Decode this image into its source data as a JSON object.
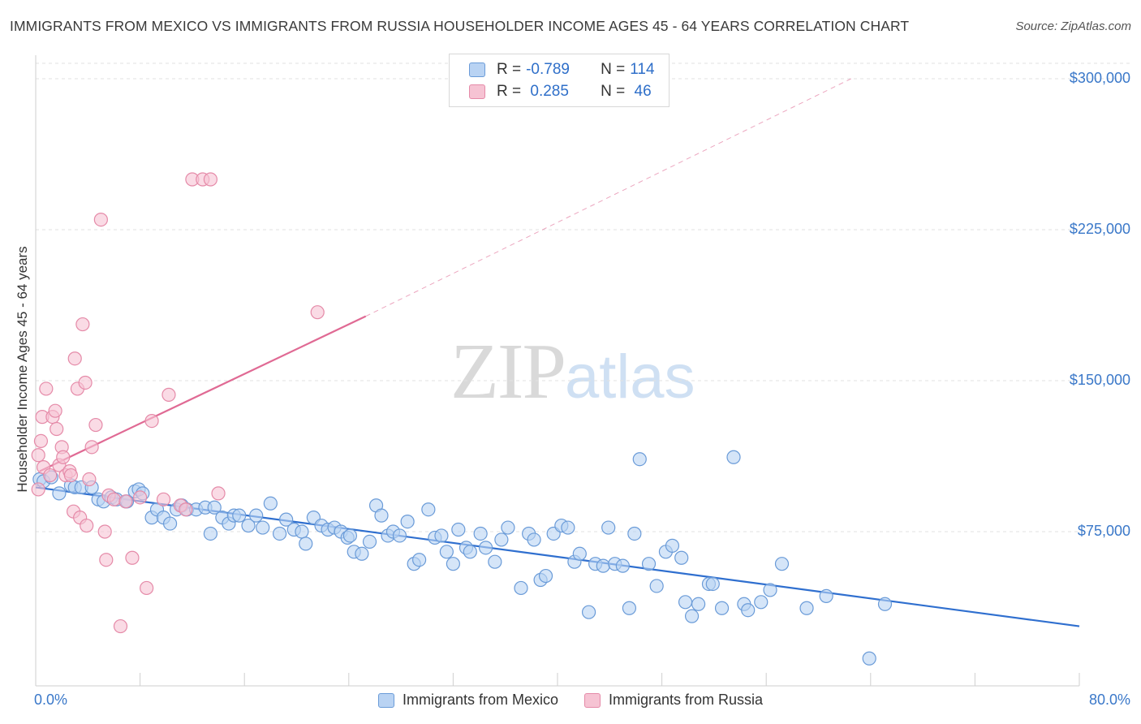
{
  "header": {
    "title": "IMMIGRANTS FROM MEXICO VS IMMIGRANTS FROM RUSSIA HOUSEHOLDER INCOME AGES 45 - 64 YEARS CORRELATION CHART",
    "source": "Source: ZipAtlas.com"
  },
  "watermark": {
    "part1": "ZIP",
    "part2": "atlas"
  },
  "legend": {
    "rows": [
      {
        "r_label": "R =",
        "r_value": "-0.789",
        "n_label": "N =",
        "n_value": "114"
      },
      {
        "r_label": "R =",
        "r_value": " 0.285",
        "n_label": "N =",
        "n_value": " 46"
      }
    ]
  },
  "colors": {
    "mexico_fill": "#b9d3f3",
    "mexico_stroke": "#6a9bd8",
    "mexico_line": "#2f6fcf",
    "russia_fill": "#f6c3d3",
    "russia_stroke": "#e58aa8",
    "russia_line": "#e06a94",
    "grid": "#e2e2e2",
    "tick_text": "#3a78c9"
  },
  "chart_data": {
    "type": "scatter",
    "title": "IMMIGRANTS FROM MEXICO VS IMMIGRANTS FROM RUSSIA HOUSEHOLDER INCOME AGES 45 - 64 YEARS CORRELATION CHART",
    "ylabel": "Householder Income Ages 45 - 64 years",
    "xlim": [
      0,
      80
    ],
    "ylim": [
      0,
      310000
    ],
    "x_tick_labels": [
      "0.0%",
      "80.0%"
    ],
    "y_ticks": [
      75000,
      150000,
      225000,
      300000
    ],
    "y_tick_labels": [
      "$75,000",
      "$150,000",
      "$225,000",
      "$300,000"
    ],
    "grid": true,
    "legend_placement": "bottom",
    "series": [
      {
        "name": "Immigrants from Mexico",
        "r": -0.789,
        "n": 114,
        "trend": {
          "x": [
            0,
            80
          ],
          "y": [
            97000,
            28000
          ]
        },
        "points": [
          [
            0.3,
            101000
          ],
          [
            0.6,
            100000
          ],
          [
            1.2,
            102000
          ],
          [
            1.8,
            94000
          ],
          [
            2.7,
            98000
          ],
          [
            3.0,
            97000
          ],
          [
            3.5,
            97000
          ],
          [
            4.3,
            97000
          ],
          [
            4.8,
            91000
          ],
          [
            5.2,
            90000
          ],
          [
            5.8,
            92000
          ],
          [
            6.2,
            91000
          ],
          [
            6.9,
            90000
          ],
          [
            7.0,
            90000
          ],
          [
            7.6,
            95000
          ],
          [
            7.9,
            96000
          ],
          [
            8.2,
            94000
          ],
          [
            8.9,
            82000
          ],
          [
            9.3,
            86000
          ],
          [
            9.8,
            82000
          ],
          [
            10.3,
            79000
          ],
          [
            10.8,
            86000
          ],
          [
            11.2,
            88000
          ],
          [
            11.6,
            86000
          ],
          [
            12.3,
            86000
          ],
          [
            13.0,
            87000
          ],
          [
            13.7,
            87000
          ],
          [
            13.4,
            74000
          ],
          [
            14.3,
            82000
          ],
          [
            14.8,
            79000
          ],
          [
            15.2,
            83000
          ],
          [
            15.6,
            83000
          ],
          [
            16.3,
            78000
          ],
          [
            16.9,
            83000
          ],
          [
            17.4,
            77000
          ],
          [
            18.0,
            89000
          ],
          [
            18.7,
            74000
          ],
          [
            19.2,
            81000
          ],
          [
            19.8,
            76000
          ],
          [
            20.4,
            75000
          ],
          [
            20.7,
            69000
          ],
          [
            21.3,
            82000
          ],
          [
            21.9,
            78000
          ],
          [
            22.4,
            76000
          ],
          [
            22.9,
            77000
          ],
          [
            23.4,
            75000
          ],
          [
            23.9,
            72000
          ],
          [
            24.4,
            65000
          ],
          [
            25.0,
            64000
          ],
          [
            25.6,
            70000
          ],
          [
            26.1,
            88000
          ],
          [
            26.5,
            83000
          ],
          [
            27.0,
            73000
          ],
          [
            27.4,
            75000
          ],
          [
            27.9,
            73000
          ],
          [
            28.5,
            80000
          ],
          [
            29.0,
            59000
          ],
          [
            29.4,
            61000
          ],
          [
            30.1,
            86000
          ],
          [
            30.6,
            72000
          ],
          [
            31.1,
            73000
          ],
          [
            31.5,
            65000
          ],
          [
            32.0,
            59000
          ],
          [
            32.4,
            76000
          ],
          [
            33.0,
            67000
          ],
          [
            33.3,
            65000
          ],
          [
            34.1,
            74000
          ],
          [
            34.5,
            67000
          ],
          [
            35.2,
            60000
          ],
          [
            35.7,
            71000
          ],
          [
            36.2,
            77000
          ],
          [
            37.2,
            47000
          ],
          [
            37.8,
            74000
          ],
          [
            38.2,
            71000
          ],
          [
            38.7,
            51000
          ],
          [
            39.1,
            53000
          ],
          [
            39.7,
            74000
          ],
          [
            40.3,
            78000
          ],
          [
            40.8,
            77000
          ],
          [
            41.3,
            60000
          ],
          [
            41.7,
            64000
          ],
          [
            42.4,
            35000
          ],
          [
            42.9,
            59000
          ],
          [
            43.5,
            58000
          ],
          [
            43.9,
            77000
          ],
          [
            44.4,
            59000
          ],
          [
            45.0,
            58000
          ],
          [
            45.5,
            37000
          ],
          [
            45.9,
            74000
          ],
          [
            46.3,
            111000
          ],
          [
            47.0,
            59000
          ],
          [
            47.6,
            48000
          ],
          [
            48.3,
            65000
          ],
          [
            48.8,
            68000
          ],
          [
            49.5,
            62000
          ],
          [
            49.8,
            40000
          ],
          [
            50.3,
            33000
          ],
          [
            50.8,
            39000
          ],
          [
            51.6,
            49000
          ],
          [
            51.9,
            49000
          ],
          [
            52.6,
            37000
          ],
          [
            53.5,
            112000
          ],
          [
            54.3,
            39000
          ],
          [
            54.6,
            36000
          ],
          [
            55.6,
            40000
          ],
          [
            56.3,
            46000
          ],
          [
            57.2,
            59000
          ],
          [
            59.1,
            37000
          ],
          [
            60.6,
            43000
          ],
          [
            63.9,
            12000
          ],
          [
            65.1,
            39000
          ],
          [
            24.1,
            73000
          ]
        ]
      },
      {
        "name": "Immigrants from Russia",
        "r": 0.285,
        "n": 46,
        "trend": {
          "x": [
            0.3,
            25.3
          ],
          "y": [
            105000,
            182000
          ]
        },
        "trend_extension": {
          "x": [
            25.3,
            62.5
          ],
          "y": [
            182000,
            300000
          ]
        },
        "points": [
          [
            0.2,
            96000
          ],
          [
            0.2,
            113000
          ],
          [
            0.4,
            120000
          ],
          [
            0.5,
            132000
          ],
          [
            0.6,
            107000
          ],
          [
            0.8,
            146000
          ],
          [
            1.1,
            103000
          ],
          [
            1.3,
            132000
          ],
          [
            1.5,
            135000
          ],
          [
            1.6,
            126000
          ],
          [
            1.8,
            108000
          ],
          [
            2.0,
            117000
          ],
          [
            2.1,
            112000
          ],
          [
            2.3,
            103000
          ],
          [
            2.6,
            105000
          ],
          [
            2.7,
            103000
          ],
          [
            2.9,
            85000
          ],
          [
            3.0,
            161000
          ],
          [
            3.2,
            146000
          ],
          [
            3.4,
            82000
          ],
          [
            3.6,
            178000
          ],
          [
            3.8,
            149000
          ],
          [
            3.9,
            78000
          ],
          [
            4.1,
            101000
          ],
          [
            4.3,
            117000
          ],
          [
            4.6,
            128000
          ],
          [
            5.0,
            230000
          ],
          [
            5.3,
            75000
          ],
          [
            5.4,
            61000
          ],
          [
            5.6,
            93000
          ],
          [
            6.0,
            91000
          ],
          [
            6.5,
            28000
          ],
          [
            6.9,
            90000
          ],
          [
            7.4,
            62000
          ],
          [
            8.0,
            92000
          ],
          [
            8.5,
            47000
          ],
          [
            8.9,
            130000
          ],
          [
            9.8,
            91000
          ],
          [
            10.2,
            143000
          ],
          [
            11.1,
            88000
          ],
          [
            11.5,
            86000
          ],
          [
            12.0,
            250000
          ],
          [
            12.8,
            250000
          ],
          [
            13.4,
            250000
          ],
          [
            14.0,
            94000
          ],
          [
            21.6,
            184000
          ]
        ]
      }
    ]
  },
  "bottom_legend": {
    "items": [
      "Immigrants from Mexico",
      "Immigrants from Russia"
    ]
  }
}
